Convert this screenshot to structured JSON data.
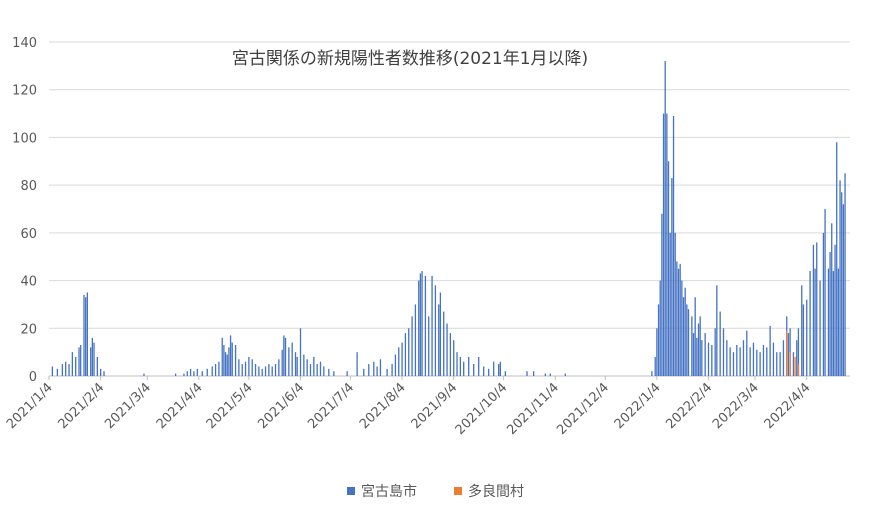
{
  "chart_data": {
    "type": "bar",
    "title": "宮古関係の新規陽性者数推移(2021年1月以降)",
    "xlabel": "",
    "ylabel": "",
    "ylim": [
      0,
      140
    ],
    "yticks": [
      0,
      20,
      40,
      60,
      80,
      100,
      120,
      140
    ],
    "x_start": "2021/1/4",
    "x_end": "2022/4/30",
    "xtick_labels": [
      "2021/1/4",
      "2021/2/4",
      "2021/3/4",
      "2021/4/4",
      "2021/5/4",
      "2021/6/4",
      "2021/7/4",
      "2021/8/4",
      "2021/9/4",
      "2021/10/4",
      "2021/11/4",
      "2021/12/4",
      "2022/1/4",
      "2022/2/4",
      "2022/3/4",
      "2022/4/4"
    ],
    "grid": true,
    "legend_position": "bottom",
    "series": [
      {
        "name": "宮古島市",
        "color": "#4472C4",
        "points": [
          [
            "2021/1/6",
            4
          ],
          [
            "2021/1/9",
            3
          ],
          [
            "2021/1/12",
            5
          ],
          [
            "2021/1/14",
            6
          ],
          [
            "2021/1/16",
            5
          ],
          [
            "2021/1/18",
            10
          ],
          [
            "2021/1/20",
            8
          ],
          [
            "2021/1/22",
            12
          ],
          [
            "2021/1/23",
            13
          ],
          [
            "2021/1/25",
            34
          ],
          [
            "2021/1/26",
            33
          ],
          [
            "2021/1/27",
            35
          ],
          [
            "2021/1/29",
            12
          ],
          [
            "2021/1/30",
            16
          ],
          [
            "2021/1/31",
            14
          ],
          [
            "2021/2/2",
            8
          ],
          [
            "2021/2/4",
            3
          ],
          [
            "2021/2/6",
            2
          ],
          [
            "2021/3/2",
            1
          ],
          [
            "2021/3/21",
            1
          ],
          [
            "2021/3/26",
            1
          ],
          [
            "2021/3/28",
            2
          ],
          [
            "2021/3/30",
            3
          ],
          [
            "2021/4/1",
            2
          ],
          [
            "2021/4/3",
            3
          ],
          [
            "2021/4/6",
            2
          ],
          [
            "2021/4/9",
            3
          ],
          [
            "2021/4/12",
            4
          ],
          [
            "2021/4/14",
            5
          ],
          [
            "2021/4/16",
            6
          ],
          [
            "2021/4/18",
            16
          ],
          [
            "2021/4/19",
            13
          ],
          [
            "2021/4/20",
            10
          ],
          [
            "2021/4/21",
            9
          ],
          [
            "2021/4/22",
            12
          ],
          [
            "2021/4/23",
            17
          ],
          [
            "2021/4/24",
            14
          ],
          [
            "2021/4/26",
            13
          ],
          [
            "2021/4/28",
            7
          ],
          [
            "2021/4/30",
            5
          ],
          [
            "2021/5/2",
            6
          ],
          [
            "2021/5/4",
            8
          ],
          [
            "2021/5/6",
            7
          ],
          [
            "2021/5/8",
            5
          ],
          [
            "2021/5/10",
            4
          ],
          [
            "2021/5/12",
            3
          ],
          [
            "2021/5/14",
            4
          ],
          [
            "2021/5/16",
            5
          ],
          [
            "2021/5/18",
            4
          ],
          [
            "2021/5/20",
            5
          ],
          [
            "2021/5/22",
            7
          ],
          [
            "2021/5/24",
            11
          ],
          [
            "2021/5/25",
            17
          ],
          [
            "2021/5/26",
            16
          ],
          [
            "2021/5/28",
            12
          ],
          [
            "2021/5/30",
            14
          ],
          [
            "2021/6/1",
            10
          ],
          [
            "2021/6/2",
            8
          ],
          [
            "2021/6/4",
            20
          ],
          [
            "2021/6/6",
            9
          ],
          [
            "2021/6/8",
            7
          ],
          [
            "2021/6/10",
            5
          ],
          [
            "2021/6/12",
            8
          ],
          [
            "2021/6/14",
            5
          ],
          [
            "2021/6/16",
            6
          ],
          [
            "2021/6/18",
            4
          ],
          [
            "2021/6/21",
            3
          ],
          [
            "2021/6/24",
            2
          ],
          [
            "2021/7/2",
            2
          ],
          [
            "2021/7/8",
            10
          ],
          [
            "2021/7/12",
            3
          ],
          [
            "2021/7/15",
            5
          ],
          [
            "2021/7/18",
            6
          ],
          [
            "2021/7/20",
            4
          ],
          [
            "2021/7/22",
            7
          ],
          [
            "2021/7/26",
            3
          ],
          [
            "2021/7/29",
            5
          ],
          [
            "2021/7/31",
            9
          ],
          [
            "2021/8/2",
            12
          ],
          [
            "2021/8/4",
            14
          ],
          [
            "2021/8/6",
            18
          ],
          [
            "2021/8/8",
            20
          ],
          [
            "2021/8/10",
            25
          ],
          [
            "2021/8/12",
            30
          ],
          [
            "2021/8/14",
            40
          ],
          [
            "2021/8/15",
            43
          ],
          [
            "2021/8/16",
            44
          ],
          [
            "2021/8/18",
            42
          ],
          [
            "2021/8/20",
            25
          ],
          [
            "2021/8/22",
            42
          ],
          [
            "2021/8/24",
            38
          ],
          [
            "2021/8/26",
            30
          ],
          [
            "2021/8/27",
            35
          ],
          [
            "2021/8/29",
            27
          ],
          [
            "2021/8/31",
            22
          ],
          [
            "2021/9/2",
            18
          ],
          [
            "2021/9/4",
            15
          ],
          [
            "2021/9/6",
            10
          ],
          [
            "2021/9/8",
            8
          ],
          [
            "2021/9/10",
            6
          ],
          [
            "2021/9/13",
            8
          ],
          [
            "2021/9/16",
            5
          ],
          [
            "2021/9/19",
            8
          ],
          [
            "2021/9/22",
            4
          ],
          [
            "2021/9/25",
            3
          ],
          [
            "2021/9/28",
            6
          ],
          [
            "2021/10/1",
            5
          ],
          [
            "2021/10/2",
            6
          ],
          [
            "2021/10/5",
            2
          ],
          [
            "2021/10/18",
            2
          ],
          [
            "2021/10/22",
            2
          ],
          [
            "2021/10/29",
            1
          ],
          [
            "2021/11/1",
            1
          ],
          [
            "2021/11/10",
            1
          ],
          [
            "2022/1/1",
            2
          ],
          [
            "2022/1/3",
            8
          ],
          [
            "2022/1/4",
            20
          ],
          [
            "2022/1/5",
            30
          ],
          [
            "2022/1/6",
            40
          ],
          [
            "2022/1/7",
            68
          ],
          [
            "2022/1/8",
            110
          ],
          [
            "2022/1/9",
            132
          ],
          [
            "2022/1/10",
            110
          ],
          [
            "2022/1/11",
            90
          ],
          [
            "2022/1/12",
            60
          ],
          [
            "2022/1/13",
            83
          ],
          [
            "2022/1/14",
            109
          ],
          [
            "2022/1/15",
            60
          ],
          [
            "2022/1/16",
            48
          ],
          [
            "2022/1/17",
            45
          ],
          [
            "2022/1/18",
            47
          ],
          [
            "2022/1/19",
            40
          ],
          [
            "2022/1/20",
            33
          ],
          [
            "2022/1/21",
            37
          ],
          [
            "2022/1/22",
            30
          ],
          [
            "2022/1/23",
            28
          ],
          [
            "2022/1/25",
            25
          ],
          [
            "2022/1/26",
            18
          ],
          [
            "2022/1/27",
            33
          ],
          [
            "2022/1/28",
            16
          ],
          [
            "2022/1/29",
            22
          ],
          [
            "2022/1/30",
            25
          ],
          [
            "2022/1/31",
            15
          ],
          [
            "2022/2/2",
            18
          ],
          [
            "2022/2/4",
            14
          ],
          [
            "2022/2/6",
            13
          ],
          [
            "2022/2/8",
            20
          ],
          [
            "2022/2/9",
            38
          ],
          [
            "2022/2/11",
            27
          ],
          [
            "2022/2/13",
            20
          ],
          [
            "2022/2/15",
            15
          ],
          [
            "2022/2/17",
            12
          ],
          [
            "2022/2/19",
            10
          ],
          [
            "2022/2/21",
            13
          ],
          [
            "2022/2/23",
            12
          ],
          [
            "2022/2/25",
            15
          ],
          [
            "2022/2/27",
            19
          ],
          [
            "2022/3/1",
            12
          ],
          [
            "2022/3/3",
            14
          ],
          [
            "2022/3/5",
            11
          ],
          [
            "2022/3/7",
            10
          ],
          [
            "2022/3/9",
            13
          ],
          [
            "2022/3/11",
            12
          ],
          [
            "2022/3/13",
            21
          ],
          [
            "2022/3/15",
            14
          ],
          [
            "2022/3/17",
            10
          ],
          [
            "2022/3/19",
            10
          ],
          [
            "2022/3/21",
            15
          ],
          [
            "2022/3/23",
            25
          ],
          [
            "2022/3/24",
            18
          ],
          [
            "2022/3/25",
            20
          ],
          [
            "2022/3/27",
            10
          ],
          [
            "2022/3/29",
            15
          ],
          [
            "2022/3/30",
            20
          ],
          [
            "2022/4/1",
            38
          ],
          [
            "2022/4/2",
            30
          ],
          [
            "2022/4/4",
            32
          ],
          [
            "2022/4/6",
            44
          ],
          [
            "2022/4/8",
            55
          ],
          [
            "2022/4/9",
            45
          ],
          [
            "2022/4/10",
            56
          ],
          [
            "2022/4/12",
            40
          ],
          [
            "2022/4/14",
            60
          ],
          [
            "2022/4/15",
            70
          ],
          [
            "2022/4/17",
            45
          ],
          [
            "2022/4/18",
            52
          ],
          [
            "2022/4/19",
            64
          ],
          [
            "2022/4/20",
            44
          ],
          [
            "2022/4/21",
            55
          ],
          [
            "2022/4/22",
            98
          ],
          [
            "2022/4/23",
            45
          ],
          [
            "2022/4/24",
            82
          ],
          [
            "2022/4/25",
            77
          ],
          [
            "2022/4/26",
            72
          ],
          [
            "2022/4/27",
            85
          ]
        ]
      },
      {
        "name": "多良間村",
        "color": "#ED7D31",
        "points": [
          [
            "2022/3/23",
            19
          ],
          [
            "2022/3/25",
            10
          ],
          [
            "2022/3/28",
            8
          ],
          [
            "2022/3/30",
            5
          ]
        ]
      }
    ]
  }
}
